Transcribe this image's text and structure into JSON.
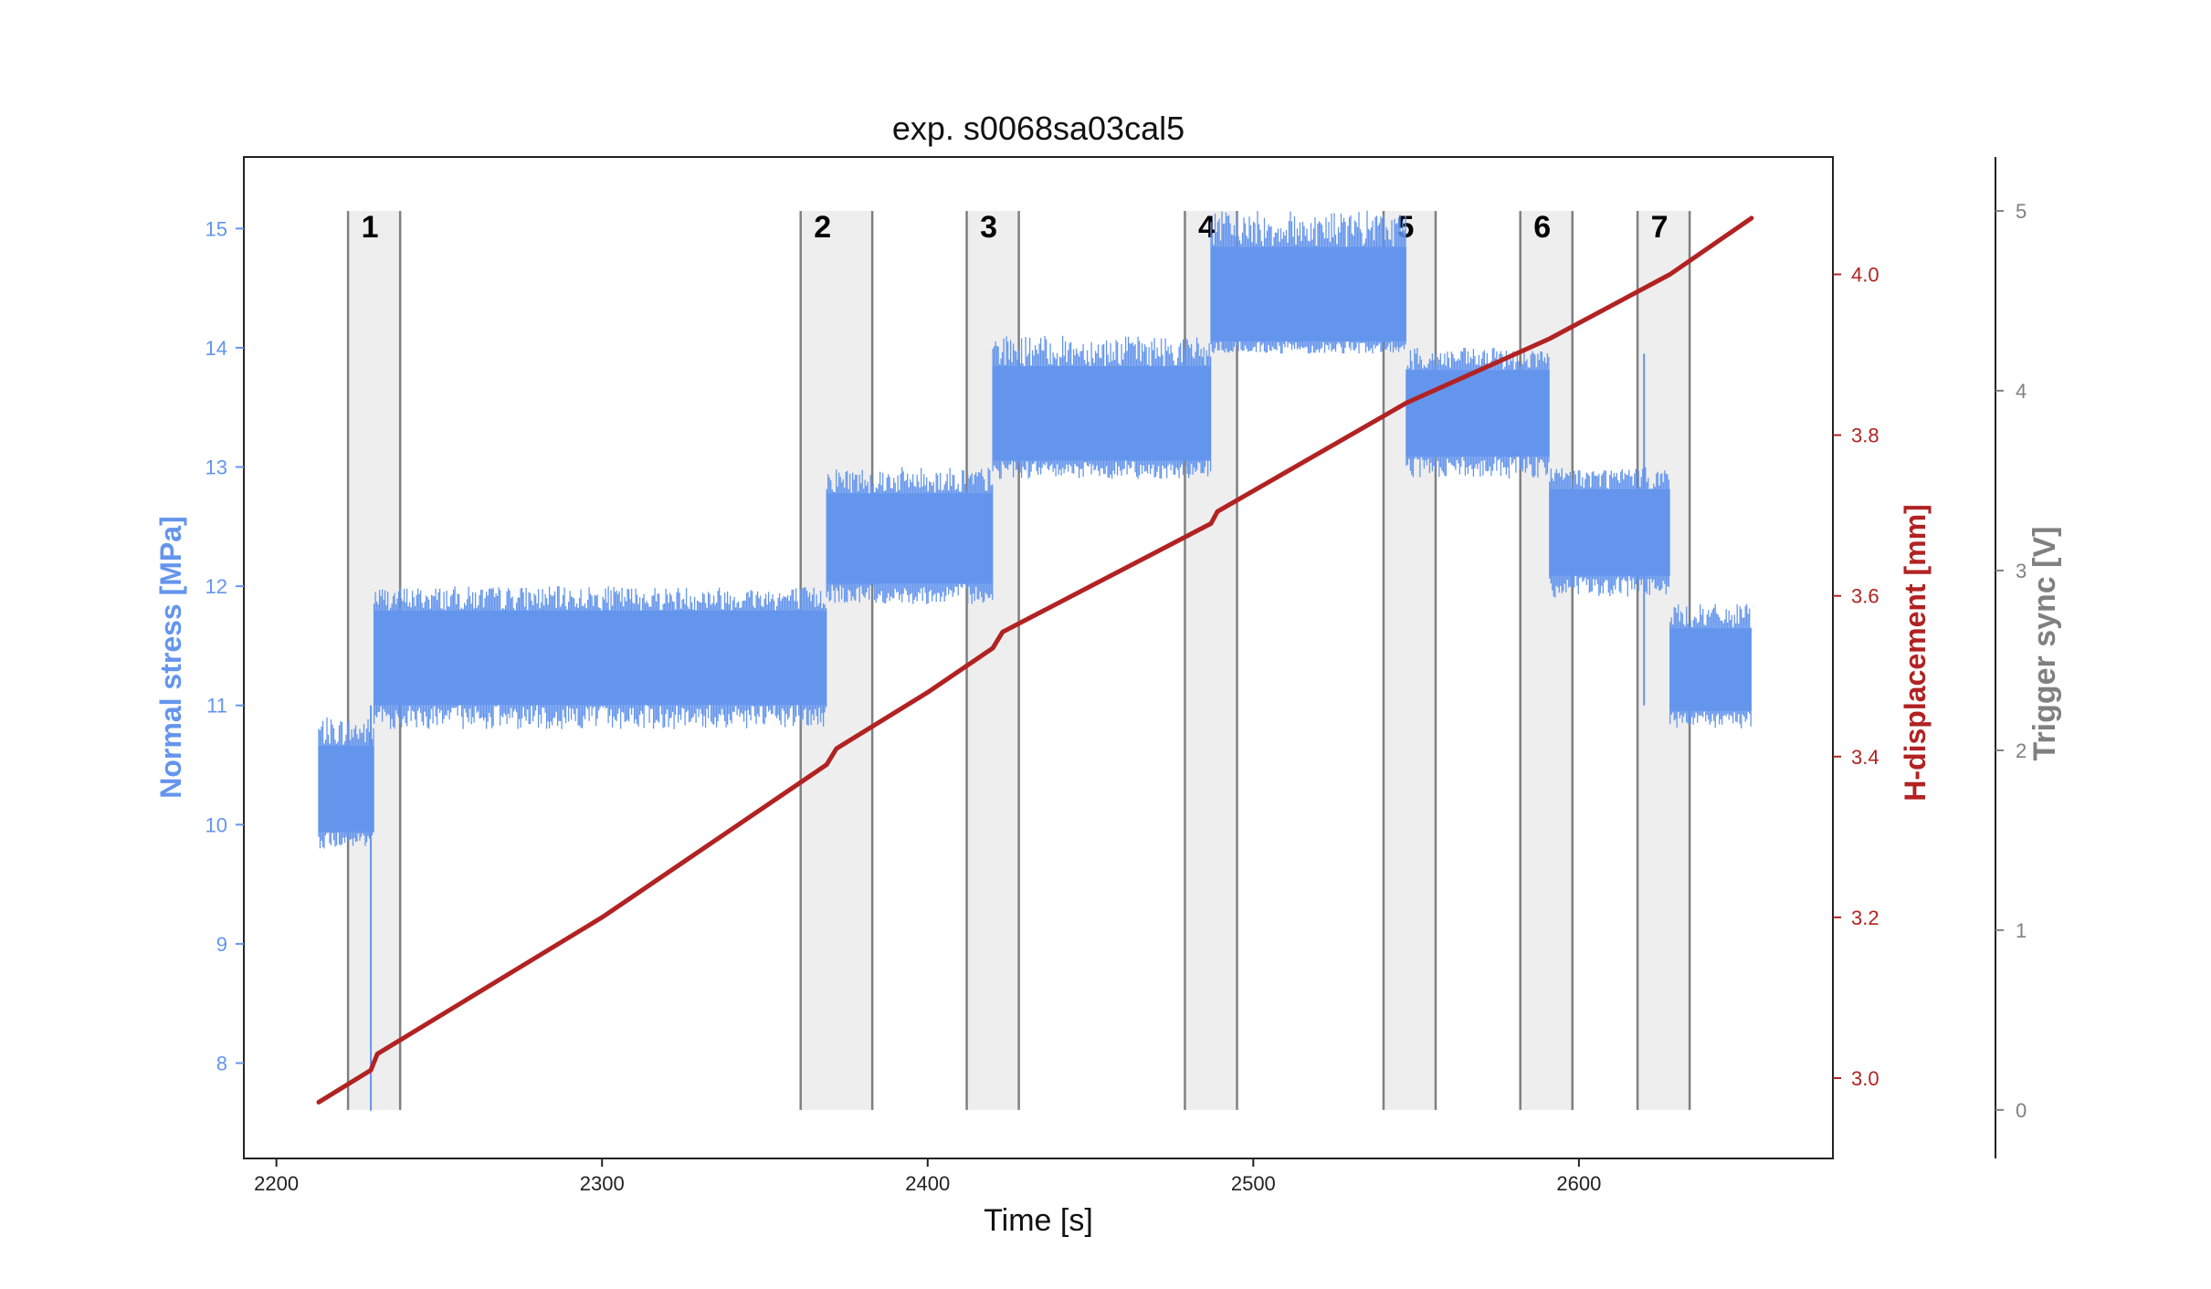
{
  "chart_data": {
    "type": "line",
    "title": "exp. s0068sa03cal5",
    "xlabel": "Time [s]",
    "ylabel_left": "Normal stress [MPa]",
    "ylabel_right": "H-displacement [mm]",
    "ylabel_far_right": "Trigger sync [V]",
    "xlim": [
      2190,
      2678
    ],
    "ylim_left": [
      7.2,
      15.6
    ],
    "ylim_right": [
      2.9,
      4.146
    ],
    "ylim_far_right": [
      -0.27,
      5.3
    ],
    "x_ticks": [
      2200,
      2300,
      2400,
      2500,
      2600
    ],
    "y_ticks_left": [
      8,
      9,
      10,
      11,
      12,
      13,
      14,
      15
    ],
    "y_ticks_right": [
      "3.0",
      "3.2",
      "3.4",
      "3.6",
      "3.8",
      "4.0"
    ],
    "y_ticks_far_right": [
      0,
      1,
      2,
      3,
      4,
      5
    ],
    "colors": {
      "normal_stress": "#6495ed",
      "h_displacement": "#b22222",
      "trigger": "#808080",
      "shade": "#eeeeee"
    },
    "grid": false,
    "series": [
      {
        "name": "Normal stress [MPa]",
        "axis": "left",
        "noisy_band": true,
        "segments": [
          {
            "x": [
              2213,
              2230
            ],
            "center": 10.3,
            "band": [
              9.8,
              10.9
            ]
          },
          {
            "x": [
              2230,
              2369
            ],
            "center": 11.4,
            "band": [
              10.8,
              12.0
            ]
          },
          {
            "x": [
              2369,
              2420
            ],
            "center": 12.4,
            "band": [
              11.85,
              13.0
            ]
          },
          {
            "x": [
              2420,
              2487
            ],
            "center": 13.45,
            "band": [
              12.9,
              14.1
            ]
          },
          {
            "x": [
              2487,
              2547
            ],
            "center": 14.45,
            "band": [
              13.95,
              15.15
            ]
          },
          {
            "x": [
              2547,
              2591
            ],
            "center": 13.45,
            "band": [
              12.9,
              14.0
            ]
          },
          {
            "x": [
              2591,
              2628
            ],
            "center": 12.45,
            "band": [
              11.9,
              13.0
            ]
          },
          {
            "x": [
              2628,
              2653
            ],
            "center": 11.3,
            "band": [
              10.8,
              11.85
            ]
          }
        ],
        "spikes": [
          {
            "x": 2229,
            "y": 7.6
          },
          {
            "x": 2620,
            "y": 13.95
          }
        ]
      },
      {
        "name": "H-displacement [mm]",
        "axis": "right",
        "x": [
          2213,
          2229,
          2231,
          2300,
          2369,
          2372,
          2400,
          2420,
          2423,
          2487,
          2489,
          2547,
          2591,
          2628,
          2653
        ],
        "y": [
          2.97,
          3.01,
          3.03,
          3.2,
          3.39,
          3.41,
          3.48,
          3.535,
          3.555,
          3.69,
          3.705,
          3.84,
          3.92,
          4.0,
          4.07
        ]
      }
    ],
    "trigger_windows": [
      {
        "label": "1",
        "x": [
          2222,
          2238
        ]
      },
      {
        "label": "2",
        "x": [
          2361,
          2383
        ]
      },
      {
        "label": "3",
        "x": [
          2412,
          2428
        ]
      },
      {
        "label": "4",
        "x": [
          2479,
          2495
        ]
      },
      {
        "label": "5",
        "x": [
          2540,
          2556
        ]
      },
      {
        "label": "6",
        "x": [
          2582,
          2598
        ]
      },
      {
        "label": "7",
        "x": [
          2618,
          2634
        ]
      }
    ]
  }
}
